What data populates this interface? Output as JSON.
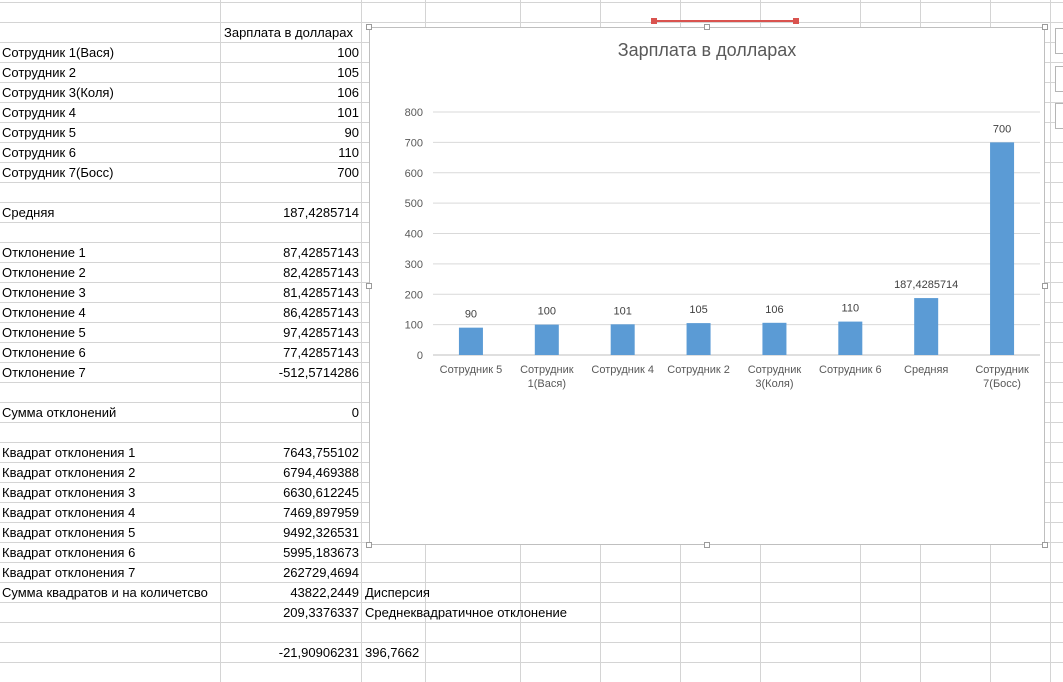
{
  "spreadsheet": {
    "header_b": "Зарплата в долларах",
    "rows": [
      {
        "a": "Сотрудник 1(Вася)",
        "b": "100",
        "c": ""
      },
      {
        "a": "Сотрудник 2",
        "b": "105",
        "c": ""
      },
      {
        "a": "Сотрудник 3(Коля)",
        "b": "106",
        "c": ""
      },
      {
        "a": "Сотрудник 4",
        "b": "101",
        "c": ""
      },
      {
        "a": "Сотрудник 5",
        "b": "90",
        "c": ""
      },
      {
        "a": "Сотрудник 6",
        "b": "110",
        "c": ""
      },
      {
        "a": "Сотрудник 7(Босс)",
        "b": "700",
        "c": ""
      },
      {
        "a": "",
        "b": "",
        "c": ""
      },
      {
        "a": "Средняя",
        "b": "187,4285714",
        "c": ""
      },
      {
        "a": "",
        "b": "",
        "c": ""
      },
      {
        "a": "Отклонение 1",
        "b": "87,42857143",
        "c": ""
      },
      {
        "a": "Отклонение 2",
        "b": "82,42857143",
        "c": ""
      },
      {
        "a": "Отклонение 3",
        "b": "81,42857143",
        "c": ""
      },
      {
        "a": "Отклонение 4",
        "b": "86,42857143",
        "c": ""
      },
      {
        "a": "Отклонение 5",
        "b": "97,42857143",
        "c": ""
      },
      {
        "a": "Отклонение 6",
        "b": "77,42857143",
        "c": ""
      },
      {
        "a": "Отклонение 7",
        "b": "-512,5714286",
        "c": ""
      },
      {
        "a": "",
        "b": "",
        "c": ""
      },
      {
        "a": "Сумма отклонений",
        "b": "0",
        "c": ""
      },
      {
        "a": "",
        "b": "",
        "c": ""
      },
      {
        "a": "Квадрат отклонения 1",
        "b": "7643,755102",
        "c": ""
      },
      {
        "a": "Квадрат отклонения 2",
        "b": "6794,469388",
        "c": ""
      },
      {
        "a": "Квадрат отклонения 3",
        "b": "6630,612245",
        "c": ""
      },
      {
        "a": "Квадрат отклонения 4",
        "b": "7469,897959",
        "c": ""
      },
      {
        "a": "Квадрат отклонения 5",
        "b": "9492,326531",
        "c": ""
      },
      {
        "a": "Квадрат отклонения 6",
        "b": "5995,183673",
        "c": ""
      },
      {
        "a": "Квадрат отклонения 7",
        "b": "262729,4694",
        "c": ""
      },
      {
        "a": "Сумма квадратов и на количетсво",
        "b": "43822,2449",
        "c": "Дисперсия"
      },
      {
        "a": "",
        "b": "209,3376337",
        "c": "Среднеквадратичное отклонение"
      },
      {
        "a": "",
        "b": "",
        "c": ""
      },
      {
        "a": "",
        "b": "-21,90906231",
        "c": "396,7662"
      }
    ]
  },
  "chart_data": {
    "type": "bar",
    "title": "Зарплата в долларах",
    "categories": [
      [
        "Сотрудник 5"
      ],
      [
        "Сотрудник",
        "1(Вася)"
      ],
      [
        "Сотрудник 4"
      ],
      [
        "Сотрудник 2"
      ],
      [
        "Сотрудник",
        "3(Коля)"
      ],
      [
        "Сотрудник 6"
      ],
      [
        "Средняя"
      ],
      [
        "Сотрудник",
        "7(Босс)"
      ]
    ],
    "values": [
      90,
      100,
      101,
      105,
      106,
      110,
      187.4285714,
      700
    ],
    "data_labels": [
      "90",
      "100",
      "101",
      "105",
      "106",
      "110",
      "187,4285714",
      "700"
    ],
    "ylim": [
      0,
      800
    ],
    "yticks": [
      "0",
      "100",
      "200",
      "300",
      "400",
      "500",
      "600",
      "700",
      "800"
    ],
    "bar_color": "#5b9bd5",
    "grid": true,
    "legend": "none"
  }
}
